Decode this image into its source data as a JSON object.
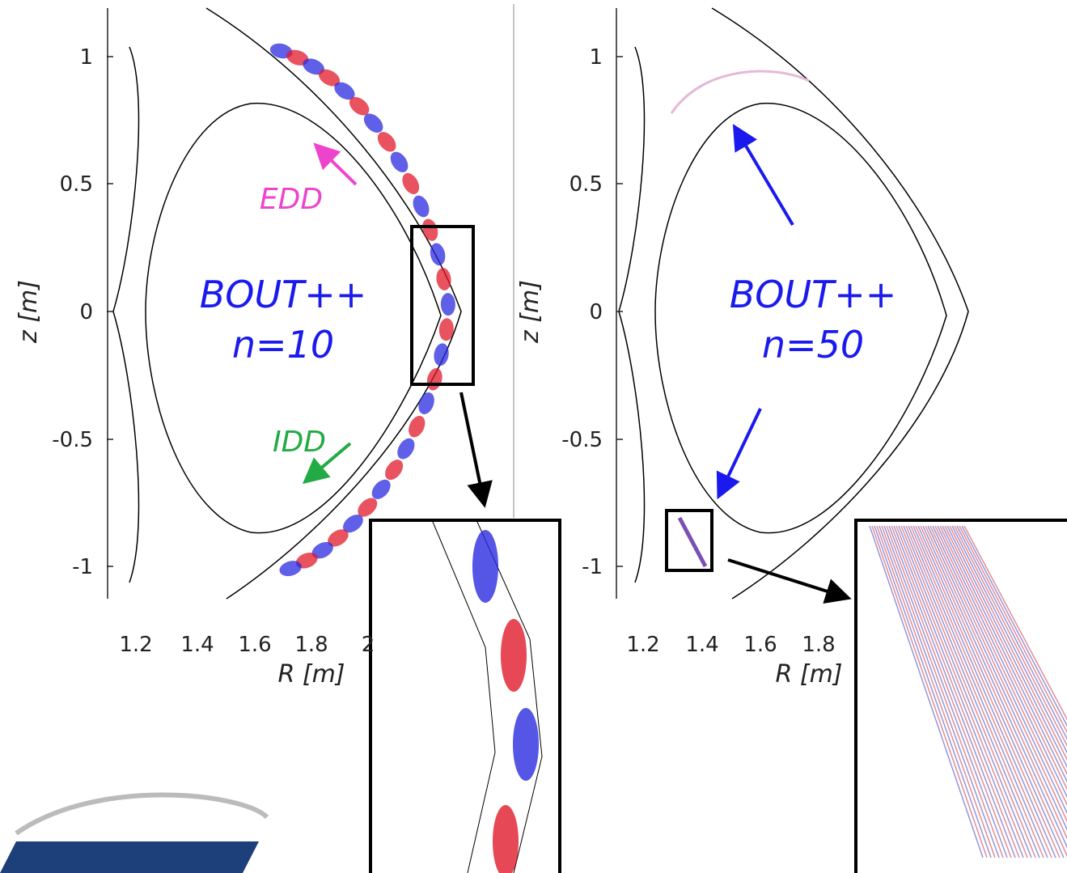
{
  "panels": [
    {
      "ylabel": "z [m]",
      "xlabel": "R [m]",
      "yticks": [
        "1",
        "0.5",
        "0",
        "-0.5",
        "-1"
      ],
      "xticks": [
        "1.2",
        "1.4",
        "1.6",
        "1.8",
        "2"
      ],
      "label_lines": [
        "BOUT++",
        "n=10"
      ],
      "annotations": [
        "EDD",
        "IDD"
      ]
    },
    {
      "ylabel": "z [m]",
      "xlabel": "R [m]",
      "yticks": [
        "1",
        "0.5",
        "0",
        "-0.5",
        "-1"
      ],
      "xticks": [
        "1.2",
        "1.4",
        "1.6",
        "1.8"
      ],
      "label_lines": [
        "BOUT++",
        "n=50"
      ]
    }
  ]
}
